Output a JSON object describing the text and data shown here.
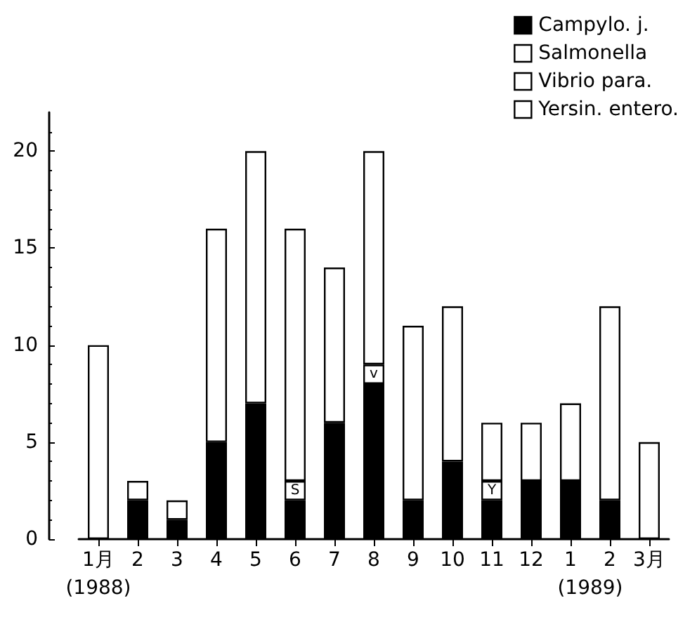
{
  "chart_data": {
    "type": "bar",
    "stacked": true,
    "categories": [
      "1月",
      "2",
      "3",
      "4",
      "5",
      "6",
      "7",
      "8",
      "9",
      "10",
      "11",
      "12",
      "1",
      "2",
      "3月"
    ],
    "series": [
      {
        "name": "Campylo. j.",
        "color": "#000000",
        "values": [
          null,
          2,
          1,
          5,
          7,
          2,
          6,
          8,
          2,
          4,
          2,
          3,
          3,
          2,
          null
        ]
      },
      {
        "name": "Salmonella",
        "color": "#ffffff",
        "values": [
          null,
          null,
          null,
          null,
          null,
          1,
          null,
          null,
          null,
          null,
          null,
          null,
          null,
          null,
          null
        ],
        "value_labels": [
          null,
          null,
          null,
          null,
          null,
          "S",
          null,
          null,
          null,
          null,
          null,
          null,
          null,
          null,
          null
        ]
      },
      {
        "name": "Vibrio para.",
        "color": "#ffffff",
        "values": [
          null,
          null,
          null,
          null,
          null,
          null,
          null,
          1,
          null,
          null,
          null,
          null,
          null,
          null,
          null
        ],
        "value_labels": [
          null,
          null,
          null,
          null,
          null,
          null,
          null,
          "v",
          null,
          null,
          null,
          null,
          null,
          null,
          null
        ]
      },
      {
        "name": "Yersin. entero.",
        "color": "#ffffff",
        "values": [
          null,
          null,
          null,
          null,
          null,
          null,
          null,
          null,
          null,
          null,
          1,
          null,
          null,
          null,
          null
        ],
        "value_labels": [
          null,
          null,
          null,
          null,
          null,
          null,
          null,
          null,
          null,
          null,
          "Y",
          null,
          null,
          null,
          null
        ]
      },
      {
        "color": "#ffffff",
        "values": [
          10,
          1,
          1,
          11,
          13,
          13,
          8,
          11,
          9,
          8,
          3,
          3,
          4,
          10,
          5
        ]
      }
    ],
    "ylim": [
      0,
      22
    ],
    "yticks": [
      0,
      5,
      10,
      15,
      20
    ],
    "grid": false,
    "legend": "top right",
    "annotations": [
      "(1988)",
      "(1989)"
    ]
  }
}
